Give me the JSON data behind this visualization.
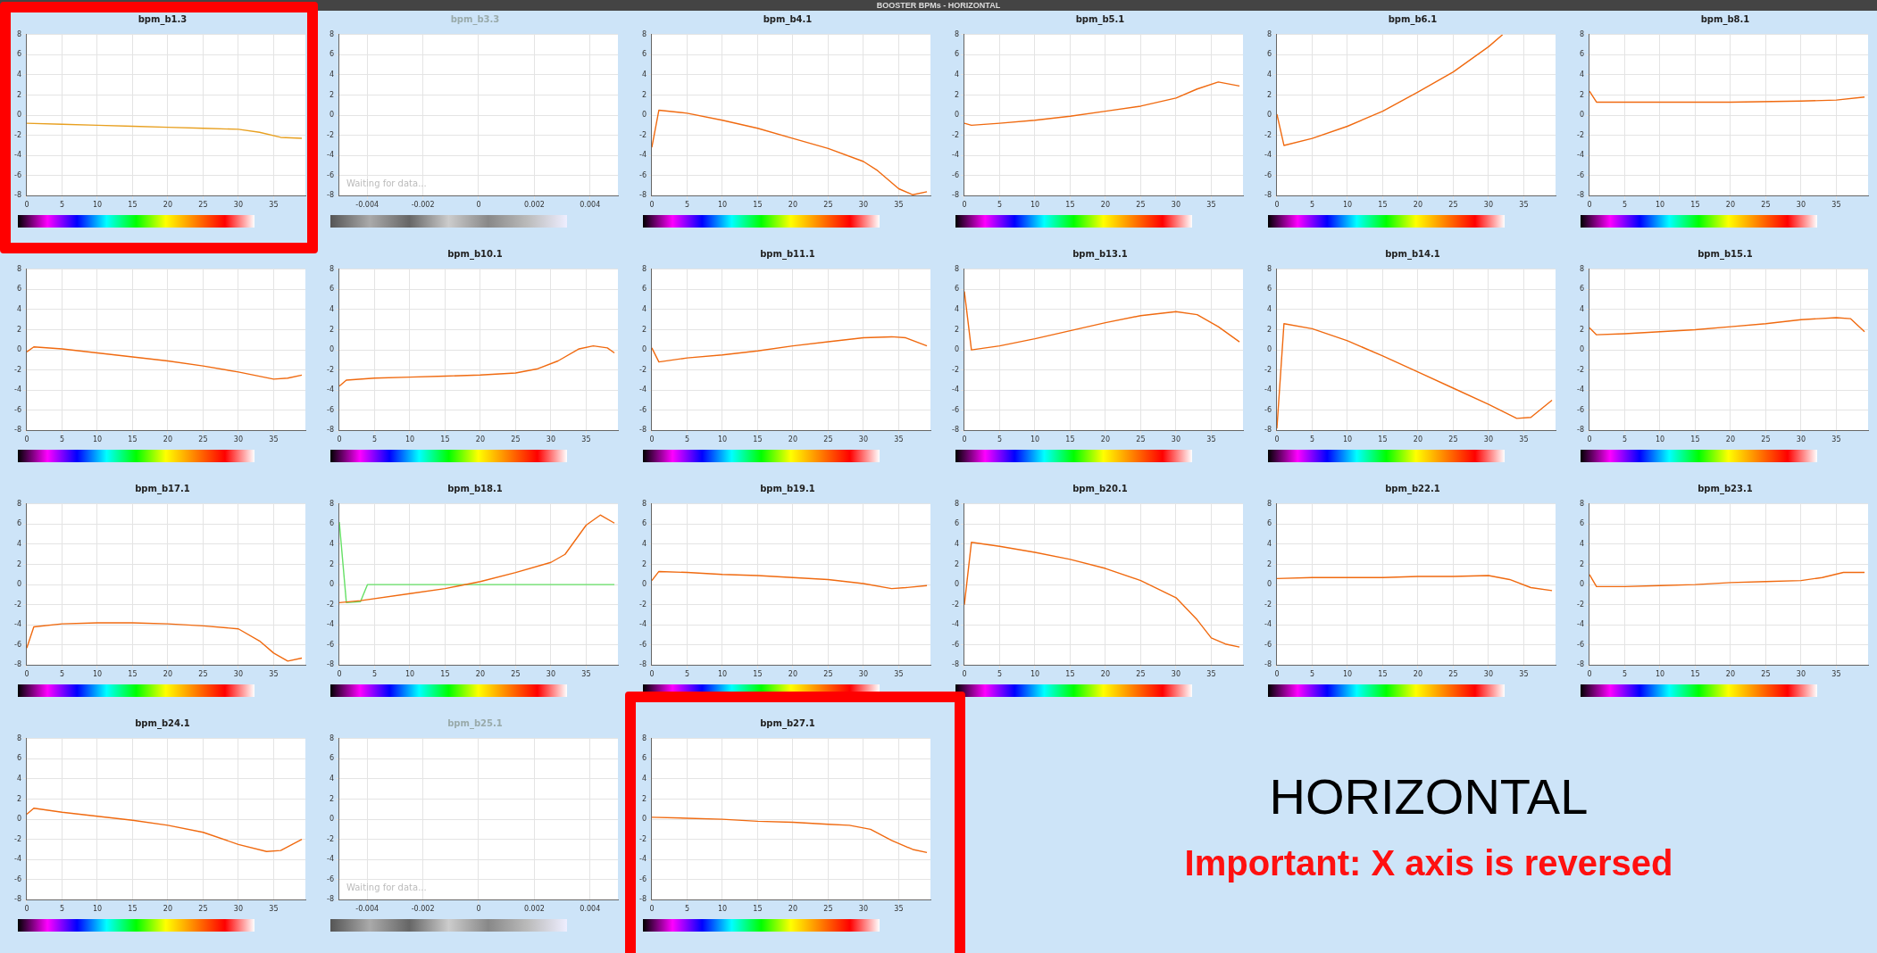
{
  "chart_data": [
    {
      "type": "line",
      "title": "bpm_b1.3",
      "xlim": [
        0,
        39.5
      ],
      "xticks": [
        0,
        5,
        10,
        15,
        20,
        25,
        30,
        35
      ],
      "ylim": [
        -8,
        8
      ],
      "yticks": [
        -8,
        -6,
        -4,
        -2,
        0,
        2,
        4,
        6,
        8
      ],
      "grid": true,
      "marker": "none",
      "series": [
        {
          "color": "#e8a020",
          "x": [
            0,
            5,
            10,
            15,
            20,
            25,
            30,
            33,
            36,
            39
          ],
          "values": [
            -0.8,
            -0.9,
            -1.0,
            -1.1,
            -1.2,
            -1.3,
            -1.4,
            -1.7,
            -2.2,
            -2.3
          ]
        }
      ]
    },
    {
      "type": "line",
      "title": "bpm_b3.3",
      "xlim": [
        -0.005,
        0.005
      ],
      "xticks": [
        -0.004,
        -0.002,
        0,
        0.002,
        0.004
      ],
      "ylim": [
        -8,
        8
      ],
      "yticks": [
        -8,
        -6,
        -4,
        -2,
        0,
        2,
        4,
        6,
        8
      ],
      "grid": true,
      "marker": "none",
      "annotations": [
        "Waiting for data..."
      ]
    },
    {
      "type": "line",
      "title": "bpm_b4.1",
      "xlim": [
        0,
        39.5
      ],
      "xticks": [
        0,
        5,
        10,
        15,
        20,
        25,
        30,
        35
      ],
      "ylim": [
        -8,
        8
      ],
      "yticks": [
        -8,
        -6,
        -4,
        -2,
        0,
        2,
        4,
        6,
        8
      ],
      "grid": true,
      "marker": "none",
      "series": [
        {
          "color": "#f06a10",
          "x": [
            0,
            1,
            5,
            10,
            15,
            20,
            25,
            30,
            32,
            35,
            37,
            39
          ],
          "values": [
            -3.2,
            0.5,
            0.2,
            -0.5,
            -1.3,
            -2.3,
            -3.3,
            -4.6,
            -5.5,
            -7.3,
            -7.9,
            -7.6
          ]
        }
      ]
    },
    {
      "type": "line",
      "title": "bpm_b5.1",
      "xlim": [
        0,
        39.5
      ],
      "xticks": [
        0,
        5,
        10,
        15,
        20,
        25,
        30,
        35
      ],
      "ylim": [
        -8,
        8
      ],
      "yticks": [
        -8,
        -6,
        -4,
        -2,
        0,
        2,
        4,
        6,
        8
      ],
      "grid": true,
      "marker": "none",
      "series": [
        {
          "color": "#f06a10",
          "x": [
            0,
            1,
            5,
            10,
            15,
            20,
            25,
            30,
            33,
            36,
            39
          ],
          "values": [
            -0.8,
            -1.0,
            -0.8,
            -0.5,
            -0.1,
            0.4,
            0.9,
            1.7,
            2.6,
            3.3,
            2.9
          ]
        }
      ]
    },
    {
      "type": "line",
      "title": "bpm_b6.1",
      "xlim": [
        0,
        39.5
      ],
      "xticks": [
        0,
        5,
        10,
        15,
        20,
        25,
        30,
        35
      ],
      "ylim": [
        -8,
        8
      ],
      "yticks": [
        -8,
        -6,
        -4,
        -2,
        0,
        2,
        4,
        6,
        8
      ],
      "grid": true,
      "marker": "none",
      "series": [
        {
          "color": "#f06a10",
          "x": [
            0,
            1,
            5,
            10,
            15,
            20,
            25,
            30,
            32
          ],
          "values": [
            0.1,
            -3.0,
            -2.3,
            -1.1,
            0.4,
            2.3,
            4.3,
            6.8,
            8
          ]
        }
      ]
    },
    {
      "type": "line",
      "title": "bpm_b8.1",
      "xlim": [
        0,
        39.5
      ],
      "xticks": [
        0,
        5,
        10,
        15,
        20,
        25,
        30,
        35
      ],
      "ylim": [
        -8,
        8
      ],
      "yticks": [
        -8,
        -6,
        -4,
        -2,
        0,
        2,
        4,
        6,
        8
      ],
      "grid": true,
      "marker": "none",
      "series": [
        {
          "color": "#f06a10",
          "x": [
            0,
            1,
            5,
            10,
            20,
            30,
            35,
            39
          ],
          "values": [
            2.4,
            1.3,
            1.3,
            1.3,
            1.3,
            1.4,
            1.5,
            1.8
          ]
        }
      ]
    },
    {
      "type": "line",
      "xlim": [
        0,
        39.5
      ],
      "xticks": [
        0,
        5,
        10,
        15,
        20,
        25,
        30,
        35
      ],
      "ylim": [
        -8,
        8
      ],
      "yticks": [
        -8,
        -6,
        -4,
        -2,
        0,
        2,
        4,
        6,
        8
      ],
      "grid": true,
      "marker": "none",
      "series": [
        {
          "color": "#f06a10",
          "x": [
            0,
            1,
            5,
            10,
            15,
            20,
            25,
            30,
            35,
            37,
            39
          ],
          "values": [
            -0.2,
            0.3,
            0.1,
            -0.3,
            -0.7,
            -1.1,
            -1.6,
            -2.2,
            -2.9,
            -2.8,
            -2.5
          ]
        }
      ]
    },
    {
      "type": "line",
      "title": "bpm_b10.1",
      "xlim": [
        0,
        39.5
      ],
      "xticks": [
        0,
        5,
        10,
        15,
        20,
        25,
        30,
        35
      ],
      "ylim": [
        -8,
        8
      ],
      "yticks": [
        -8,
        -6,
        -4,
        -2,
        0,
        2,
        4,
        6,
        8
      ],
      "grid": true,
      "marker": "none",
      "series": [
        {
          "color": "#f06a10",
          "x": [
            0,
            1,
            5,
            10,
            15,
            20,
            25,
            28,
            31,
            34,
            36,
            38,
            39
          ],
          "values": [
            -3.6,
            -3.0,
            -2.8,
            -2.7,
            -2.6,
            -2.5,
            -2.3,
            -1.9,
            -1.1,
            0.1,
            0.4,
            0.2,
            -0.3
          ]
        }
      ]
    },
    {
      "type": "line",
      "title": "bpm_b11.1",
      "xlim": [
        0,
        39.5
      ],
      "xticks": [
        0,
        5,
        10,
        15,
        20,
        25,
        30,
        35
      ],
      "ylim": [
        -8,
        8
      ],
      "yticks": [
        -8,
        -6,
        -4,
        -2,
        0,
        2,
        4,
        6,
        8
      ],
      "grid": true,
      "marker": "none",
      "series": [
        {
          "color": "#f06a10",
          "x": [
            0,
            1,
            5,
            10,
            15,
            20,
            25,
            30,
            34,
            36,
            39
          ],
          "values": [
            0.2,
            -1.2,
            -0.8,
            -0.5,
            -0.1,
            0.4,
            0.8,
            1.2,
            1.3,
            1.2,
            0.4
          ]
        }
      ]
    },
    {
      "type": "line",
      "title": "bpm_b13.1",
      "xlim": [
        0,
        39.5
      ],
      "xticks": [
        0,
        5,
        10,
        15,
        20,
        25,
        30,
        35
      ],
      "ylim": [
        -8,
        8
      ],
      "yticks": [
        -8,
        -6,
        -4,
        -2,
        0,
        2,
        4,
        6,
        8
      ],
      "grid": true,
      "marker": "none",
      "series": [
        {
          "color": "#f06a10",
          "x": [
            0,
            1,
            5,
            10,
            15,
            20,
            25,
            30,
            33,
            36,
            39
          ],
          "values": [
            5.8,
            0.0,
            0.4,
            1.1,
            1.9,
            2.7,
            3.4,
            3.8,
            3.5,
            2.3,
            0.8
          ]
        }
      ]
    },
    {
      "type": "line",
      "title": "bpm_b14.1",
      "xlim": [
        0,
        39.5
      ],
      "xticks": [
        0,
        5,
        10,
        15,
        20,
        25,
        30,
        35
      ],
      "ylim": [
        -8,
        8
      ],
      "yticks": [
        -8,
        -6,
        -4,
        -2,
        0,
        2,
        4,
        6,
        8
      ],
      "grid": true,
      "marker": "none",
      "series": [
        {
          "color": "#f06a10",
          "x": [
            0,
            1,
            5,
            10,
            15,
            20,
            25,
            30,
            34,
            36,
            39
          ],
          "values": [
            -7.8,
            2.6,
            2.1,
            0.9,
            -0.6,
            -2.2,
            -3.8,
            -5.4,
            -6.8,
            -6.7,
            -5.0
          ]
        }
      ]
    },
    {
      "type": "line",
      "title": "bpm_b15.1",
      "xlim": [
        0,
        39.5
      ],
      "xticks": [
        0,
        5,
        10,
        15,
        20,
        25,
        30,
        35
      ],
      "ylim": [
        -8,
        8
      ],
      "yticks": [
        -8,
        -6,
        -4,
        -2,
        0,
        2,
        4,
        6,
        8
      ],
      "grid": true,
      "marker": "none",
      "series": [
        {
          "color": "#f06a10",
          "x": [
            0,
            1,
            5,
            10,
            15,
            20,
            25,
            30,
            35,
            37,
            39
          ],
          "values": [
            2.2,
            1.5,
            1.6,
            1.8,
            2.0,
            2.3,
            2.6,
            3.0,
            3.2,
            3.1,
            1.8
          ]
        }
      ]
    },
    {
      "type": "line",
      "title": "bpm_b17.1",
      "xlim": [
        0,
        39.5
      ],
      "xticks": [
        0,
        5,
        10,
        15,
        20,
        25,
        30,
        35
      ],
      "ylim": [
        -8,
        8
      ],
      "yticks": [
        -8,
        -6,
        -4,
        -2,
        0,
        2,
        4,
        6,
        8
      ],
      "grid": true,
      "marker": "none",
      "series": [
        {
          "color": "#f06a10",
          "x": [
            0,
            1,
            5,
            10,
            15,
            20,
            25,
            30,
            33,
            35,
            37,
            39
          ],
          "values": [
            -6.3,
            -4.2,
            -3.9,
            -3.8,
            -3.8,
            -3.9,
            -4.1,
            -4.4,
            -5.6,
            -6.8,
            -7.6,
            -7.3
          ]
        }
      ]
    },
    {
      "type": "line",
      "title": "bpm_b18.1",
      "xlim": [
        0,
        39.5
      ],
      "xticks": [
        0,
        5,
        10,
        15,
        20,
        25,
        30,
        35
      ],
      "ylim": [
        -8,
        8
      ],
      "yticks": [
        -8,
        -6,
        -4,
        -2,
        0,
        2,
        4,
        6,
        8
      ],
      "grid": true,
      "marker": "none",
      "series": [
        {
          "color": "#f06a10",
          "x": [
            0,
            3,
            10,
            15,
            20,
            25,
            30,
            32,
            35,
            37,
            39
          ],
          "values": [
            -1.8,
            -1.6,
            -0.9,
            -0.4,
            0.3,
            1.2,
            2.2,
            3.0,
            5.9,
            6.9,
            6.1
          ]
        },
        {
          "color": "#66e066",
          "x": [
            0,
            1,
            3,
            4,
            39
          ],
          "values": [
            6.2,
            -1.8,
            -1.7,
            0,
            0
          ]
        }
      ]
    },
    {
      "type": "line",
      "title": "bpm_b19.1",
      "xlim": [
        0,
        39.5
      ],
      "xticks": [
        0,
        5,
        10,
        15,
        20,
        25,
        30,
        35
      ],
      "ylim": [
        -8,
        8
      ],
      "yticks": [
        -8,
        -6,
        -4,
        -2,
        0,
        2,
        4,
        6,
        8
      ],
      "grid": true,
      "marker": "none",
      "series": [
        {
          "color": "#f06a10",
          "x": [
            0,
            1,
            5,
            10,
            15,
            20,
            25,
            30,
            34,
            36,
            39
          ],
          "values": [
            0.4,
            1.3,
            1.2,
            1.0,
            0.9,
            0.7,
            0.5,
            0.1,
            -0.4,
            -0.3,
            -0.1
          ]
        }
      ]
    },
    {
      "type": "line",
      "title": "bpm_b20.1",
      "xlim": [
        0,
        39.5
      ],
      "xticks": [
        0,
        5,
        10,
        15,
        20,
        25,
        30,
        35
      ],
      "ylim": [
        -8,
        8
      ],
      "yticks": [
        -8,
        -6,
        -4,
        -2,
        0,
        2,
        4,
        6,
        8
      ],
      "grid": true,
      "marker": "none",
      "series": [
        {
          "color": "#f06a10",
          "x": [
            0,
            1,
            5,
            10,
            15,
            20,
            25,
            30,
            33,
            35,
            37,
            39
          ],
          "values": [
            -2.0,
            4.2,
            3.8,
            3.2,
            2.5,
            1.6,
            0.4,
            -1.3,
            -3.5,
            -5.3,
            -5.9,
            -6.2
          ]
        }
      ]
    },
    {
      "type": "line",
      "title": "bpm_b22.1",
      "xlim": [
        0,
        39.5
      ],
      "xticks": [
        0,
        5,
        10,
        15,
        20,
        25,
        30,
        35
      ],
      "ylim": [
        -8,
        8
      ],
      "yticks": [
        -8,
        -6,
        -4,
        -2,
        0,
        2,
        4,
        6,
        8
      ],
      "grid": true,
      "marker": "none",
      "series": [
        {
          "color": "#f06a10",
          "x": [
            0,
            5,
            10,
            15,
            20,
            25,
            30,
            33,
            36,
            39
          ],
          "values": [
            0.6,
            0.7,
            0.7,
            0.7,
            0.8,
            0.8,
            0.9,
            0.5,
            -0.3,
            -0.6
          ]
        }
      ]
    },
    {
      "type": "line",
      "title": "bpm_b23.1",
      "xlim": [
        0,
        39.5
      ],
      "xticks": [
        0,
        5,
        10,
        15,
        20,
        25,
        30,
        35
      ],
      "ylim": [
        -8,
        8
      ],
      "yticks": [
        -8,
        -6,
        -4,
        -2,
        0,
        2,
        4,
        6,
        8
      ],
      "grid": true,
      "marker": "none",
      "series": [
        {
          "color": "#f06a10",
          "x": [
            0,
            1,
            5,
            10,
            15,
            20,
            25,
            30,
            33,
            36,
            39
          ],
          "values": [
            1.0,
            -0.2,
            -0.2,
            -0.1,
            0.0,
            0.2,
            0.3,
            0.4,
            0.7,
            1.2,
            1.2
          ]
        }
      ]
    },
    {
      "type": "line",
      "title": "bpm_b24.1",
      "xlim": [
        0,
        39.5
      ],
      "xticks": [
        0,
        5,
        10,
        15,
        20,
        25,
        30,
        35
      ],
      "ylim": [
        -8,
        8
      ],
      "yticks": [
        -8,
        -6,
        -4,
        -2,
        0,
        2,
        4,
        6,
        8
      ],
      "grid": true,
      "marker": "none",
      "series": [
        {
          "color": "#f06a10",
          "x": [
            0,
            1,
            5,
            10,
            15,
            20,
            25,
            30,
            34,
            36,
            39
          ],
          "values": [
            0.5,
            1.1,
            0.7,
            0.3,
            -0.1,
            -0.6,
            -1.3,
            -2.5,
            -3.2,
            -3.1,
            -2.0
          ]
        }
      ]
    },
    {
      "type": "line",
      "title": "bpm_b25.1",
      "xlim": [
        -0.005,
        0.005
      ],
      "xticks": [
        -0.004,
        -0.002,
        0,
        0.002,
        0.004
      ],
      "ylim": [
        -8,
        8
      ],
      "yticks": [
        -8,
        -6,
        -4,
        -2,
        0,
        2,
        4,
        6,
        8
      ],
      "grid": true,
      "marker": "none",
      "annotations": [
        "Waiting for data..."
      ]
    },
    {
      "type": "line",
      "title": "bpm_b27.1",
      "xlim": [
        0,
        39.5
      ],
      "xticks": [
        0,
        5,
        10,
        15,
        20,
        25,
        30,
        35
      ],
      "ylim": [
        -8,
        8
      ],
      "yticks": [
        -8,
        -6,
        -4,
        -2,
        0,
        2,
        4,
        6,
        8
      ],
      "grid": true,
      "marker": "none",
      "series": [
        {
          "color": "#f06a10",
          "x": [
            0,
            5,
            10,
            15,
            20,
            25,
            28,
            31,
            34,
            37,
            39
          ],
          "values": [
            0.2,
            0.1,
            0.0,
            -0.2,
            -0.3,
            -0.5,
            -0.6,
            -1.0,
            -2.1,
            -3.0,
            -3.3
          ]
        }
      ]
    },
    {
      "type": "other",
      "title": "BOOSTER BPMs - HORIZONTAL",
      "annotations": [
        "HORIZONTAL",
        "Important: X axis is reversed"
      ]
    }
  ]
}
